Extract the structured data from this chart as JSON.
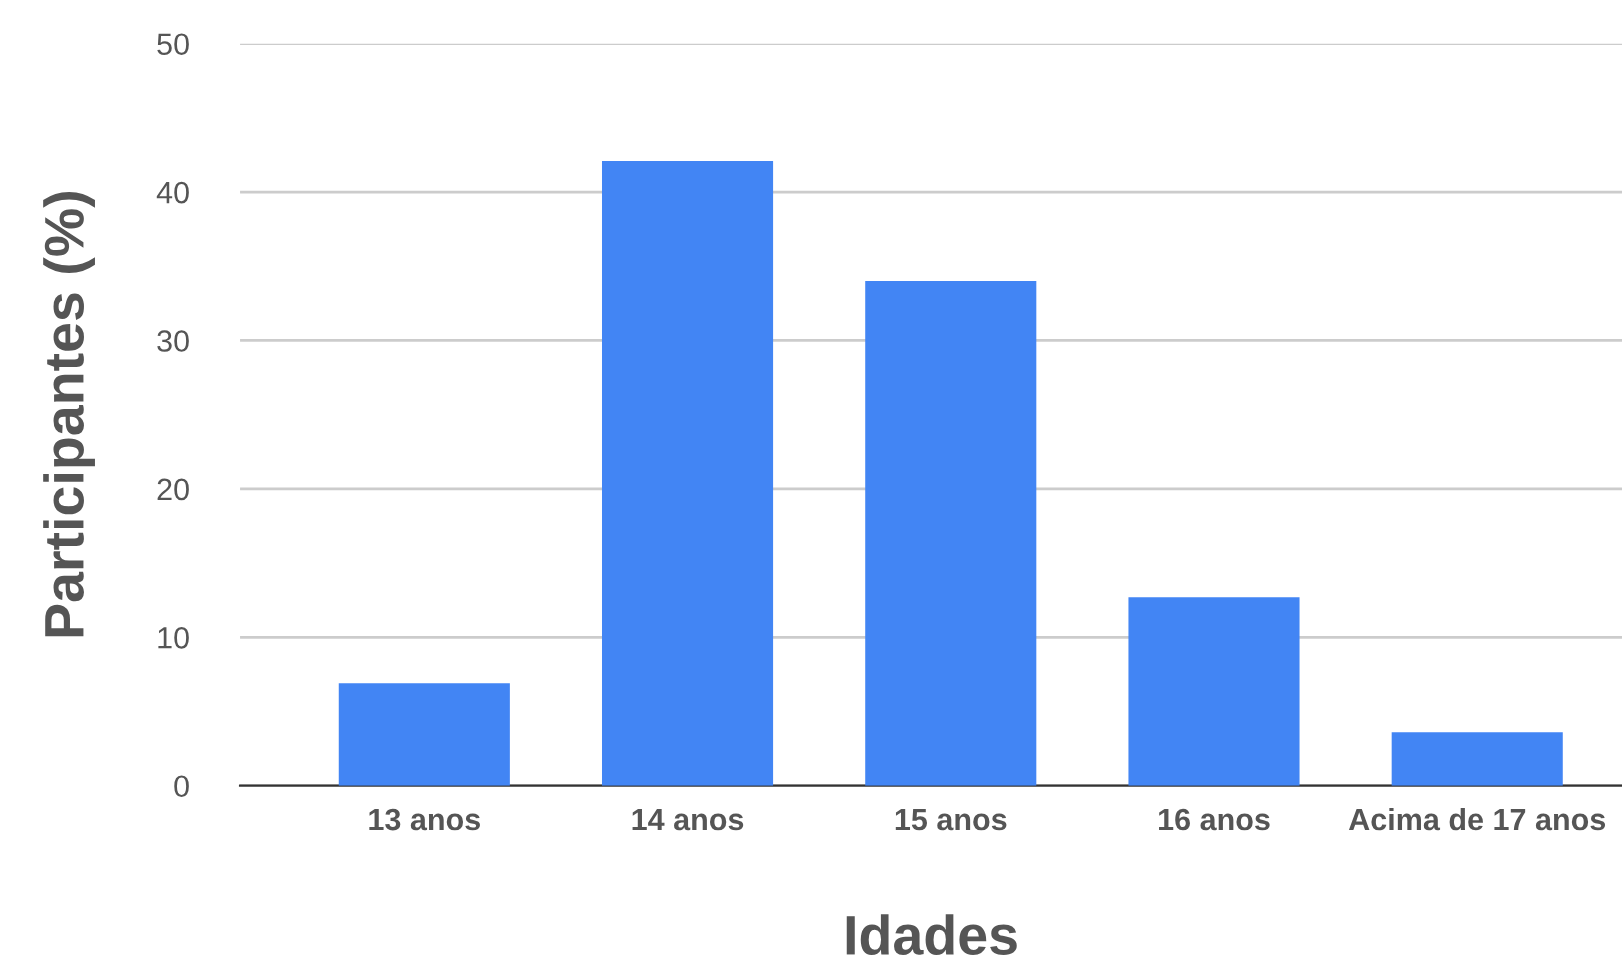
{
  "chart_data": {
    "type": "bar",
    "xlabel": "Idades",
    "ylabel": "Participantes (%)",
    "categories": [
      "13 anos",
      "14 anos",
      "15 anos",
      "16 anos",
      "Acima de 17 anos"
    ],
    "values": [
      6.9,
      42.1,
      34.0,
      12.7,
      3.6
    ],
    "color": "#4285f4",
    "ylim": [
      0,
      50
    ],
    "yticks": [
      0,
      10,
      20,
      30,
      40,
      50
    ],
    "grid": "y"
  }
}
